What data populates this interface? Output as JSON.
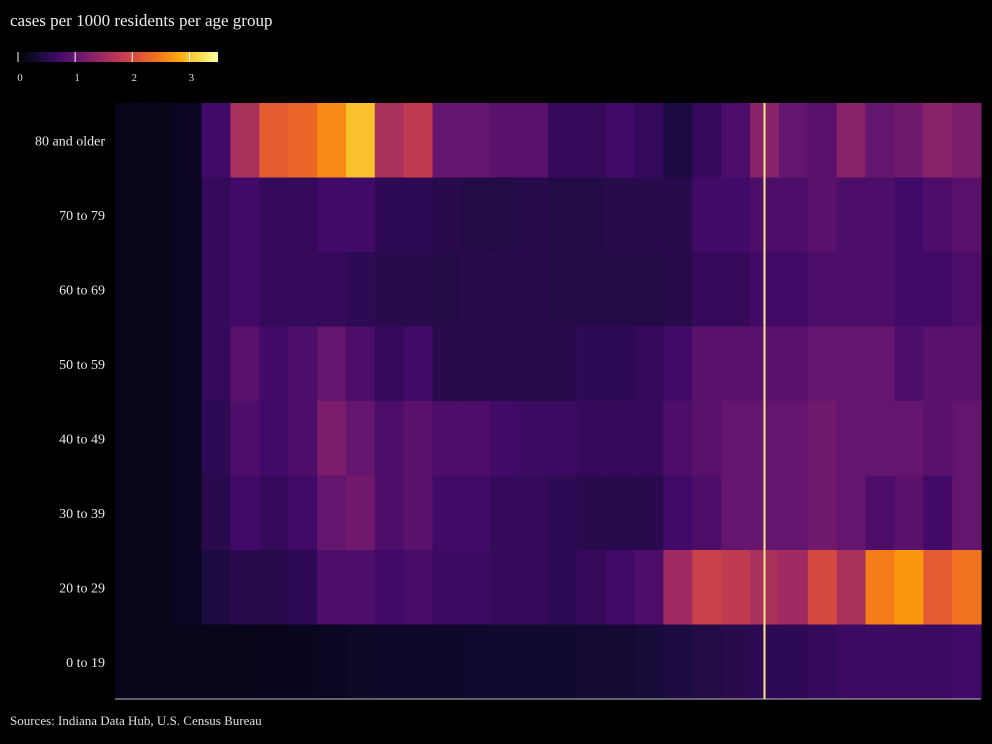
{
  "chart_data": {
    "type": "heatmap",
    "title": "cases per 1000 residents per age group",
    "source": "Sources: Indiana Data Hub, U.S. Census Bureau",
    "rows": [
      "80 and older",
      "70 to 79",
      "60 to 69",
      "50 to 59",
      "40 to 49",
      "30 to 39",
      "20 to 29",
      "0 to 19"
    ],
    "colorbar": {
      "ticks": [
        0,
        1,
        2,
        3
      ],
      "range": [
        0,
        3.5
      ],
      "colormap": "inferno"
    },
    "highlight_column": 22.5,
    "xlabel": "",
    "ylabel": "",
    "values": [
      [
        0.15,
        0.15,
        0.2,
        0.7,
        1.6,
        2.2,
        2.3,
        2.6,
        3.0,
        1.6,
        1.8,
        1.0,
        1.0,
        0.9,
        0.9,
        0.6,
        0.6,
        0.7,
        0.6,
        0.4,
        0.6,
        0.8,
        1.3,
        1.0,
        0.9,
        1.3,
        1.0,
        1.1,
        1.3,
        1.2
      ],
      [
        0.15,
        0.15,
        0.2,
        0.6,
        0.7,
        0.6,
        0.6,
        0.7,
        0.7,
        0.55,
        0.55,
        0.5,
        0.45,
        0.45,
        0.5,
        0.45,
        0.45,
        0.5,
        0.5,
        0.5,
        0.7,
        0.7,
        0.8,
        0.8,
        0.9,
        0.8,
        0.8,
        0.7,
        0.8,
        0.9
      ],
      [
        0.15,
        0.15,
        0.2,
        0.6,
        0.7,
        0.6,
        0.6,
        0.6,
        0.55,
        0.5,
        0.5,
        0.45,
        0.5,
        0.5,
        0.5,
        0.45,
        0.45,
        0.45,
        0.45,
        0.5,
        0.6,
        0.6,
        0.7,
        0.7,
        0.8,
        0.8,
        0.8,
        0.7,
        0.7,
        0.8
      ],
      [
        0.15,
        0.15,
        0.2,
        0.6,
        0.9,
        0.7,
        0.8,
        1.0,
        0.8,
        0.6,
        0.7,
        0.5,
        0.5,
        0.5,
        0.5,
        0.5,
        0.55,
        0.55,
        0.6,
        0.7,
        0.9,
        0.9,
        0.9,
        0.9,
        1.0,
        1.0,
        1.0,
        0.8,
        0.9,
        0.9
      ],
      [
        0.15,
        0.15,
        0.2,
        0.55,
        0.8,
        0.7,
        0.8,
        1.2,
        1.0,
        0.8,
        0.9,
        0.8,
        0.8,
        0.7,
        0.65,
        0.65,
        0.6,
        0.6,
        0.6,
        0.8,
        0.9,
        1.0,
        1.0,
        1.0,
        1.1,
        1.0,
        1.0,
        1.0,
        0.9,
        1.0
      ],
      [
        0.15,
        0.15,
        0.2,
        0.5,
        0.7,
        0.6,
        0.7,
        1.0,
        1.1,
        0.8,
        0.9,
        0.7,
        0.7,
        0.6,
        0.6,
        0.55,
        0.5,
        0.5,
        0.5,
        0.7,
        0.8,
        1.0,
        1.0,
        1.0,
        1.1,
        1.0,
        0.8,
        0.9,
        0.7,
        1.0
      ],
      [
        0.15,
        0.15,
        0.2,
        0.4,
        0.5,
        0.5,
        0.55,
        0.8,
        0.8,
        0.7,
        0.75,
        0.65,
        0.65,
        0.6,
        0.6,
        0.55,
        0.6,
        0.7,
        0.8,
        1.5,
        1.9,
        1.8,
        1.6,
        1.5,
        2.0,
        1.6,
        2.5,
        2.7,
        2.2,
        2.4
      ],
      [
        0.15,
        0.15,
        0.15,
        0.15,
        0.15,
        0.16,
        0.18,
        0.2,
        0.22,
        0.25,
        0.25,
        0.26,
        0.27,
        0.28,
        0.28,
        0.28,
        0.3,
        0.3,
        0.35,
        0.4,
        0.45,
        0.5,
        0.55,
        0.55,
        0.6,
        0.65,
        0.65,
        0.65,
        0.65,
        0.7
      ]
    ]
  }
}
